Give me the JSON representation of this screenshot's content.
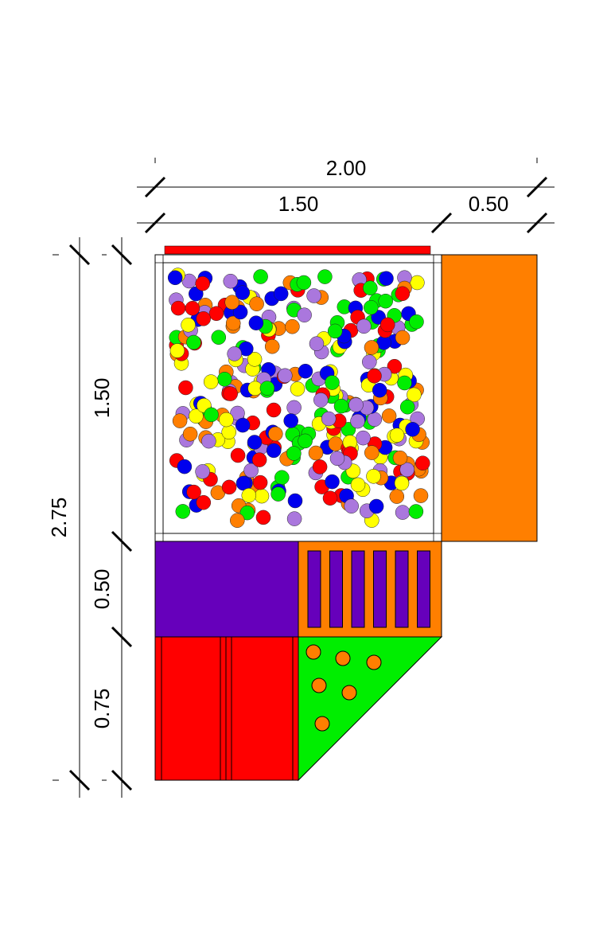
{
  "dimensions": {
    "horizontal": [
      "2.00",
      "1.50",
      "0.50"
    ],
    "vertical": [
      "2.75",
      "1.50",
      "0.50",
      "0.75"
    ]
  }
}
